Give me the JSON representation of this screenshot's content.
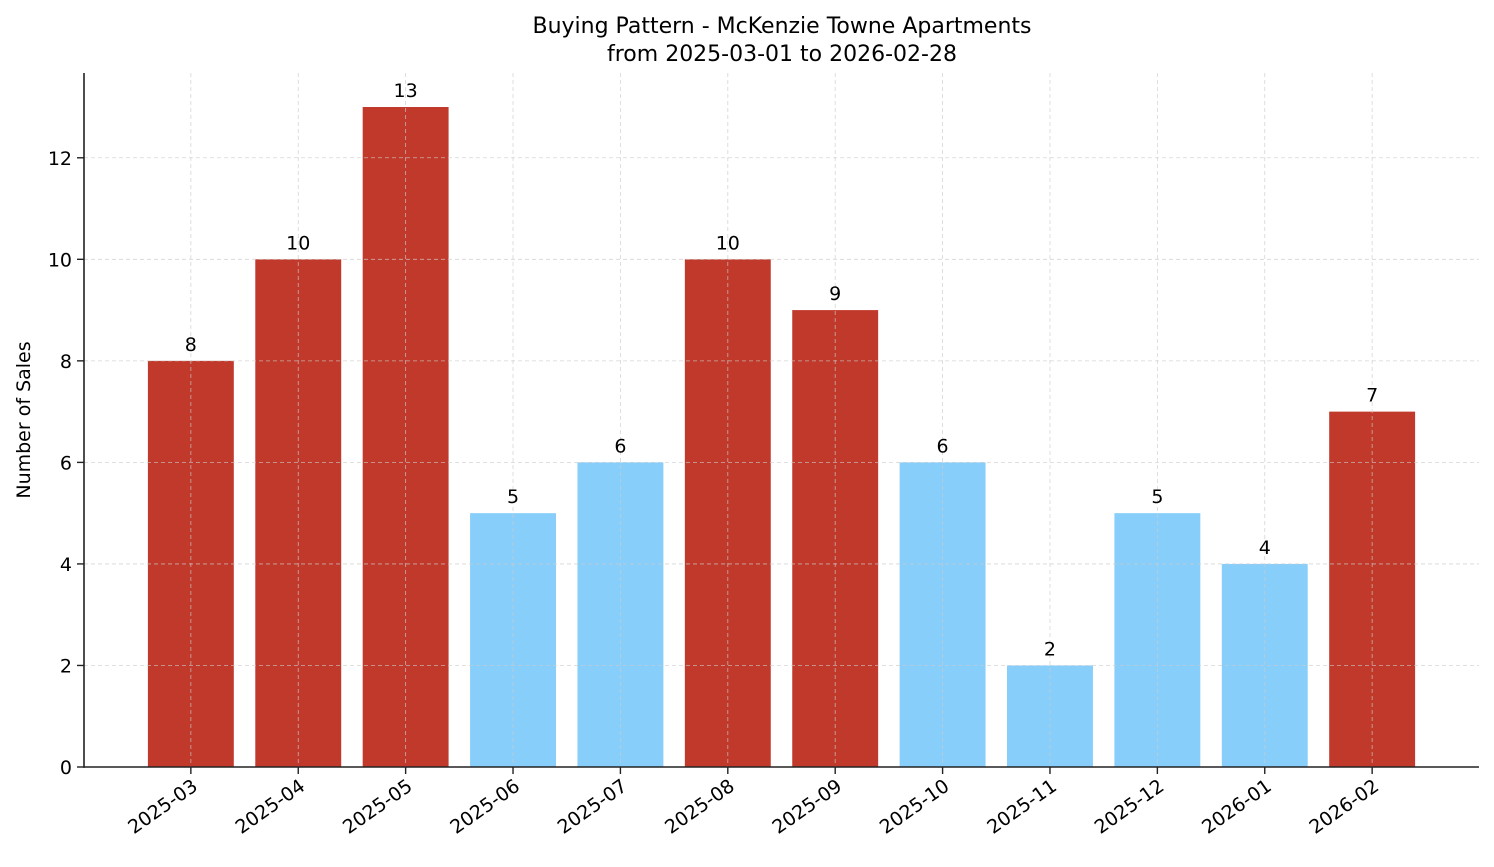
{
  "chart_data": {
    "type": "bar",
    "title": "Buying Pattern - McKenzie Towne Apartments",
    "subtitle": "from 2025-03-01 to 2026-02-28",
    "xlabel": "",
    "ylabel": "Number of Sales",
    "categories": [
      "2025-03",
      "2025-04",
      "2025-05",
      "2025-06",
      "2025-07",
      "2025-08",
      "2025-09",
      "2025-10",
      "2025-11",
      "2025-12",
      "2026-01",
      "2026-02"
    ],
    "values": [
      8,
      10,
      13,
      5,
      6,
      10,
      9,
      6,
      2,
      5,
      4,
      7
    ],
    "bar_colors": [
      "#c0392b",
      "#c0392b",
      "#c0392b",
      "#87cefa",
      "#87cefa",
      "#c0392b",
      "#c0392b",
      "#87cefa",
      "#87cefa",
      "#87cefa",
      "#87cefa",
      "#c0392b"
    ],
    "yticks": [
      0,
      2,
      4,
      6,
      8,
      10,
      12
    ],
    "ylim": [
      0,
      13.67
    ],
    "grid": true,
    "data_labels": true
  }
}
